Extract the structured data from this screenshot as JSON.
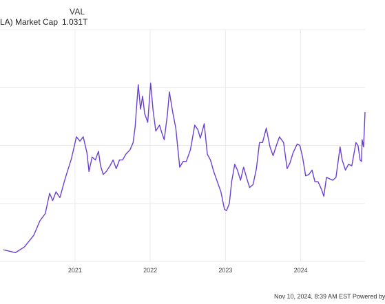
{
  "legend": {
    "column_header": "VAL",
    "series_label": "LA) Market Cap",
    "series_value": "1.031T"
  },
  "footer": {
    "credit": "Nov 10, 2024, 8:39 AM EST Powered by"
  },
  "colors": {
    "line": "#6a3fd1",
    "grid": "#ebebeb",
    "axis_text": "#444444"
  },
  "chart_data": {
    "type": "line",
    "title": "",
    "xlabel": "",
    "ylabel": "",
    "x_tick_labels": [
      "2021",
      "2022",
      "2023",
      "2024"
    ],
    "x_range": [
      "2020-01-20",
      "2024-11-08"
    ],
    "y_range": [
      0,
      1.6
    ],
    "y_gridlines": [
      0.4,
      0.8,
      1.2,
      1.6
    ],
    "grid": true,
    "legend_position": "top-left",
    "series": [
      {
        "name": "LA) Market Cap",
        "color": "#6a3fd1",
        "points": [
          [
            "2020-01-20",
            0.08
          ],
          [
            "2020-03-18",
            0.06
          ],
          [
            "2020-05-01",
            0.1
          ],
          [
            "2020-06-15",
            0.18
          ],
          [
            "2020-07-15",
            0.28
          ],
          [
            "2020-08-10",
            0.33
          ],
          [
            "2020-08-31",
            0.47
          ],
          [
            "2020-09-15",
            0.42
          ],
          [
            "2020-10-01",
            0.48
          ],
          [
            "2020-10-20",
            0.44
          ],
          [
            "2020-11-10",
            0.55
          ],
          [
            "2020-11-25",
            0.62
          ],
          [
            "2020-12-15",
            0.71
          ],
          [
            "2021-01-08",
            0.86
          ],
          [
            "2021-01-25",
            0.83
          ],
          [
            "2021-02-10",
            0.86
          ],
          [
            "2021-02-28",
            0.75
          ],
          [
            "2021-03-10",
            0.62
          ],
          [
            "2021-03-25",
            0.72
          ],
          [
            "2021-04-10",
            0.7
          ],
          [
            "2021-04-25",
            0.76
          ],
          [
            "2021-05-05",
            0.66
          ],
          [
            "2021-05-18",
            0.6
          ],
          [
            "2021-06-02",
            0.62
          ],
          [
            "2021-06-20",
            0.66
          ],
          [
            "2021-07-05",
            0.7
          ],
          [
            "2021-07-20",
            0.64
          ],
          [
            "2021-08-05",
            0.7
          ],
          [
            "2021-08-20",
            0.7
          ],
          [
            "2021-09-05",
            0.74
          ],
          [
            "2021-09-25",
            0.77
          ],
          [
            "2021-10-10",
            0.82
          ],
          [
            "2021-10-20",
            0.93
          ],
          [
            "2021-10-27",
            1.07
          ],
          [
            "2021-11-04",
            1.22
          ],
          [
            "2021-11-15",
            1.05
          ],
          [
            "2021-11-25",
            1.14
          ],
          [
            "2021-12-05",
            1.02
          ],
          [
            "2021-12-20",
            0.96
          ],
          [
            "2022-01-03",
            1.23
          ],
          [
            "2022-01-15",
            1.04
          ],
          [
            "2022-01-28",
            0.9
          ],
          [
            "2022-02-15",
            0.94
          ],
          [
            "2022-02-28",
            0.88
          ],
          [
            "2022-03-10",
            0.84
          ],
          [
            "2022-03-25",
            1.01
          ],
          [
            "2022-04-04",
            1.17
          ],
          [
            "2022-04-20",
            1.03
          ],
          [
            "2022-05-05",
            0.92
          ],
          [
            "2022-05-24",
            0.65
          ],
          [
            "2022-06-10",
            0.69
          ],
          [
            "2022-06-25",
            0.69
          ],
          [
            "2022-07-15",
            0.77
          ],
          [
            "2022-08-05",
            0.94
          ],
          [
            "2022-08-20",
            0.91
          ],
          [
            "2022-09-01",
            0.85
          ],
          [
            "2022-09-20",
            0.95
          ],
          [
            "2022-10-05",
            0.74
          ],
          [
            "2022-10-20",
            0.7
          ],
          [
            "2022-11-05",
            0.62
          ],
          [
            "2022-11-20",
            0.56
          ],
          [
            "2022-12-10",
            0.48
          ],
          [
            "2022-12-27",
            0.36
          ],
          [
            "2023-01-06",
            0.35
          ],
          [
            "2023-01-20",
            0.4
          ],
          [
            "2023-01-31",
            0.55
          ],
          [
            "2023-02-15",
            0.67
          ],
          [
            "2023-02-28",
            0.63
          ],
          [
            "2023-03-15",
            0.56
          ],
          [
            "2023-03-30",
            0.65
          ],
          [
            "2023-04-15",
            0.57
          ],
          [
            "2023-04-28",
            0.51
          ],
          [
            "2023-05-15",
            0.53
          ],
          [
            "2023-05-31",
            0.64
          ],
          [
            "2023-06-15",
            0.82
          ],
          [
            "2023-06-30",
            0.82
          ],
          [
            "2023-07-18",
            0.92
          ],
          [
            "2023-08-05",
            0.79
          ],
          [
            "2023-08-20",
            0.73
          ],
          [
            "2023-09-05",
            0.8
          ],
          [
            "2023-09-20",
            0.86
          ],
          [
            "2023-10-10",
            0.82
          ],
          [
            "2023-10-27",
            0.64
          ],
          [
            "2023-11-10",
            0.68
          ],
          [
            "2023-11-25",
            0.75
          ],
          [
            "2023-12-15",
            0.81
          ],
          [
            "2023-12-28",
            0.8
          ],
          [
            "2024-01-10",
            0.72
          ],
          [
            "2024-01-25",
            0.59
          ],
          [
            "2024-02-10",
            0.6
          ],
          [
            "2024-02-25",
            0.63
          ],
          [
            "2024-03-10",
            0.55
          ],
          [
            "2024-03-25",
            0.55
          ],
          [
            "2024-04-10",
            0.5
          ],
          [
            "2024-04-22",
            0.45
          ],
          [
            "2024-05-05",
            0.58
          ],
          [
            "2024-05-20",
            0.57
          ],
          [
            "2024-06-05",
            0.56
          ],
          [
            "2024-06-20",
            0.58
          ],
          [
            "2024-07-10",
            0.79
          ],
          [
            "2024-07-20",
            0.7
          ],
          [
            "2024-08-05",
            0.63
          ],
          [
            "2024-08-20",
            0.67
          ],
          [
            "2024-09-05",
            0.66
          ],
          [
            "2024-09-25",
            0.82
          ],
          [
            "2024-10-05",
            0.8
          ],
          [
            "2024-10-15",
            0.7
          ],
          [
            "2024-10-22",
            0.69
          ],
          [
            "2024-10-25",
            0.84
          ],
          [
            "2024-11-01",
            0.79
          ],
          [
            "2024-11-08",
            1.03
          ]
        ]
      }
    ]
  }
}
